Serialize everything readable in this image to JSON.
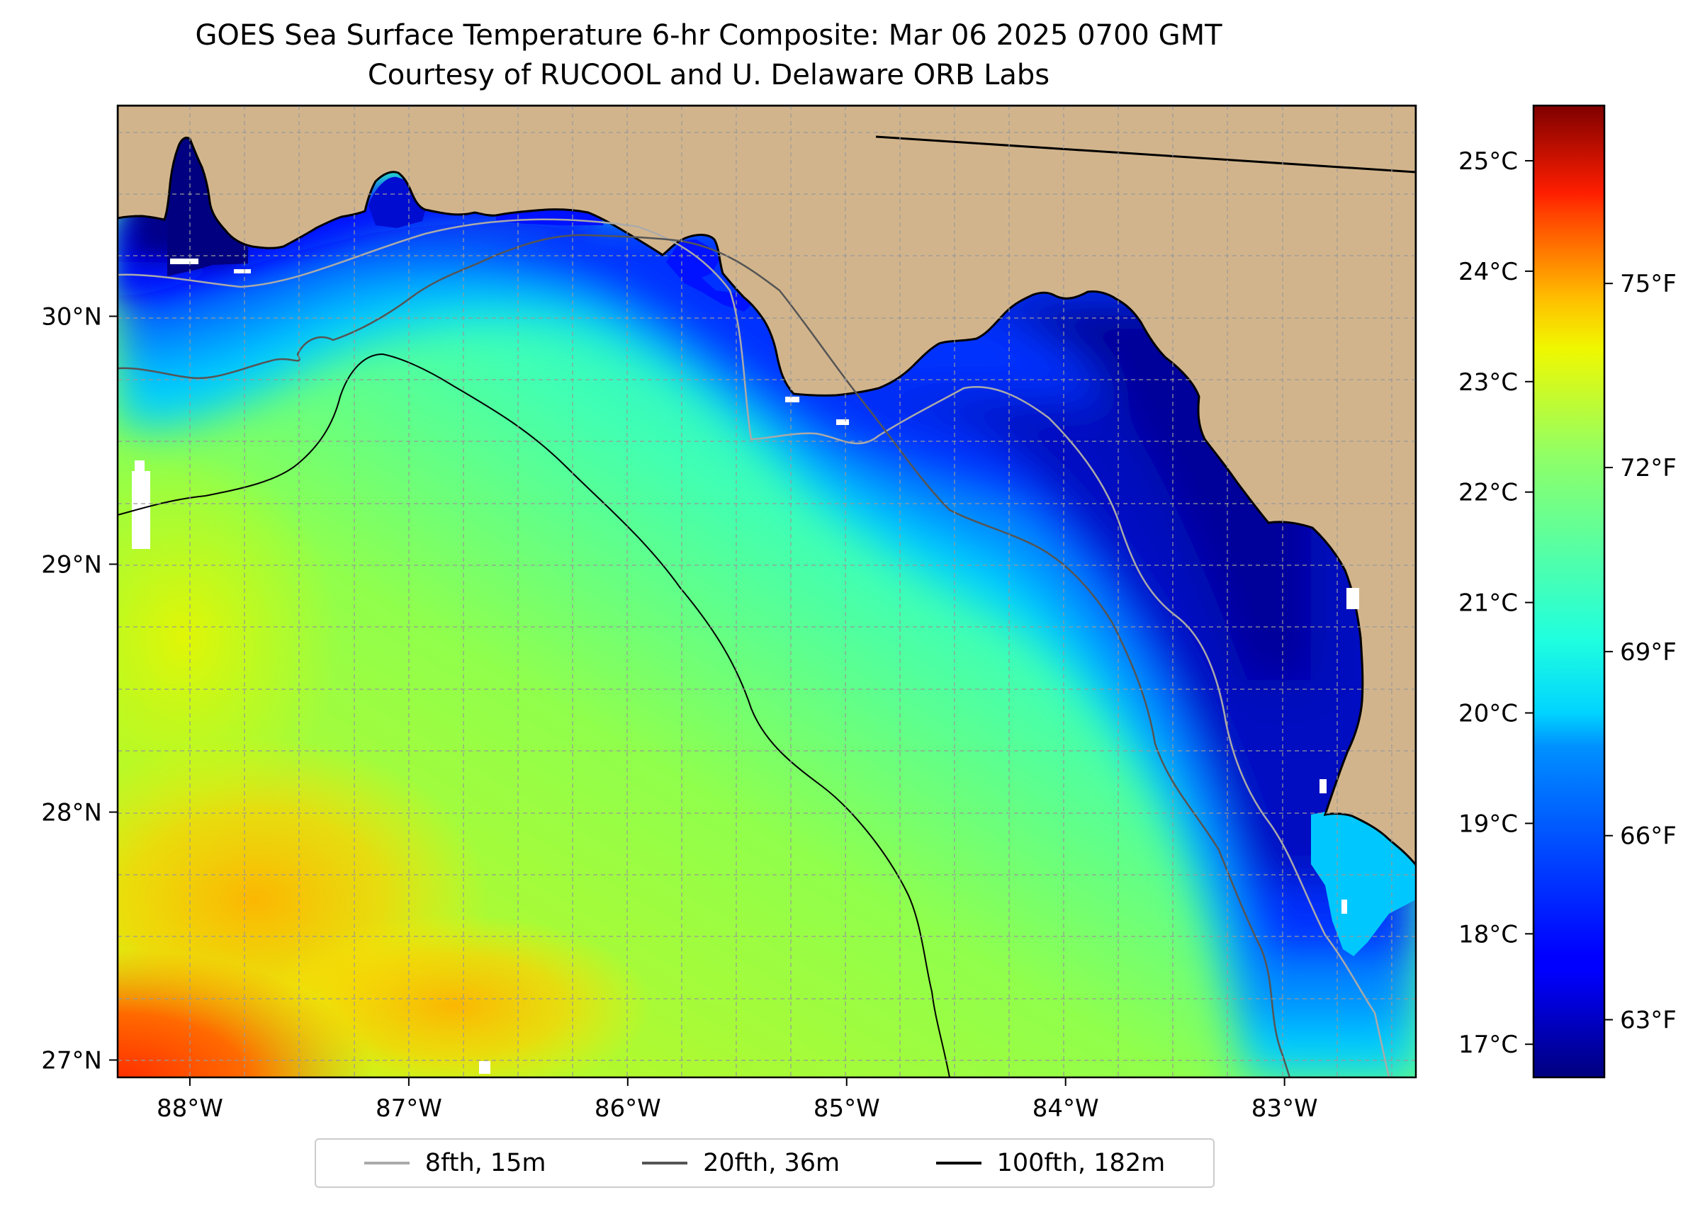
{
  "title": {
    "line1": "GOES Sea Surface Temperature 6-hr Composite: Mar 06 2025 0700 GMT",
    "line2": "Courtesy of RUCOOL and U. Delaware ORB Labs"
  },
  "map": {
    "longitude_range": [
      -88.33,
      -82.4
    ],
    "latitude_range": [
      26.93,
      30.85
    ],
    "longitude_ticks": [
      {
        "value": -88,
        "label": "88°W"
      },
      {
        "value": -87,
        "label": "87°W"
      },
      {
        "value": -86,
        "label": "86°W"
      },
      {
        "value": -85,
        "label": "85°W"
      },
      {
        "value": -84,
        "label": "84°W"
      },
      {
        "value": -83,
        "label": "83°W"
      }
    ],
    "latitude_ticks": [
      {
        "value": 30,
        "label": "30°N"
      },
      {
        "value": 29,
        "label": "29°N"
      },
      {
        "value": 28,
        "label": "28°N"
      },
      {
        "value": 27,
        "label": "27°N"
      }
    ],
    "colors": {
      "land": "#d2b48c",
      "coastline": "#000000",
      "gridline": "#999999"
    }
  },
  "colorbar": {
    "celsius_range": [
      16.7,
      25.5
    ],
    "celsius_ticks": [
      {
        "value": 17,
        "label": "17°C"
      },
      {
        "value": 18,
        "label": "18°C"
      },
      {
        "value": 19,
        "label": "19°C"
      },
      {
        "value": 20,
        "label": "20°C"
      },
      {
        "value": 21,
        "label": "21°C"
      },
      {
        "value": 22,
        "label": "22°C"
      },
      {
        "value": 23,
        "label": "23°C"
      },
      {
        "value": 24,
        "label": "24°C"
      },
      {
        "value": 25,
        "label": "25°C"
      }
    ],
    "fahrenheit_ticks": [
      {
        "value": 63,
        "label": "63°F"
      },
      {
        "value": 66,
        "label": "66°F"
      },
      {
        "value": 69,
        "label": "69°F"
      },
      {
        "value": 72,
        "label": "72°F"
      },
      {
        "value": 75,
        "label": "75°F"
      }
    ],
    "colormap": "jet"
  },
  "legend": {
    "items": [
      {
        "label": "8fth, 15m",
        "color": "#aaaaaa"
      },
      {
        "label": "20fth, 36m",
        "color": "#555555"
      },
      {
        "label": "100fth, 182m",
        "color": "#000000"
      }
    ]
  }
}
